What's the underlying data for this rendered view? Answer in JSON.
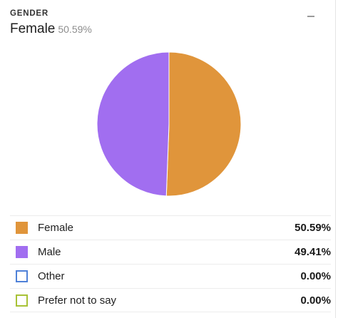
{
  "header": {
    "label": "GENDER",
    "highlight_name": "Female",
    "highlight_value": "50.59%"
  },
  "chart_data": {
    "type": "pie",
    "categories": [
      "Female",
      "Male",
      "Other",
      "Prefer not to say"
    ],
    "values": [
      50.59,
      49.41,
      0.0,
      0.0
    ],
    "value_labels": [
      "50.59%",
      "49.41%",
      "0.00%",
      "0.00%"
    ],
    "colors": [
      "#e0953b",
      "#a16ef0",
      "#4f81d8",
      "#a8c236"
    ],
    "legend_position": "bottom"
  },
  "icons": {
    "menu": "minus-icon"
  }
}
